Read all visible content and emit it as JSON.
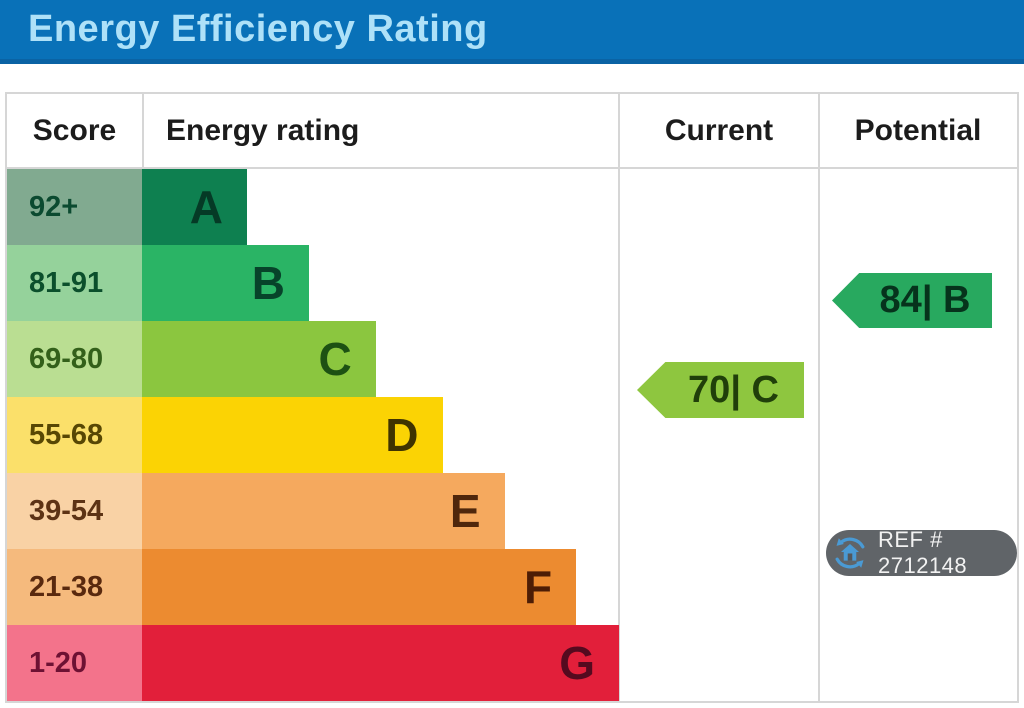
{
  "title_bar": {
    "title": "Energy Efficiency Rating"
  },
  "columns": {
    "score": "Score",
    "rating": "Energy rating",
    "current": "Current",
    "potential": "Potential"
  },
  "chart_data": {
    "type": "bar",
    "title": "Energy Efficiency Rating",
    "orientation": "horizontal",
    "bands": [
      {
        "grade": "A",
        "range": "92+",
        "width_pct": 22,
        "bar_color": "#0e8050",
        "score_bg": "#81aa90",
        "text_color": "#0b4a30",
        "letter_color": "#053a26"
      },
      {
        "grade": "B",
        "range": "81-91",
        "width_pct": 35,
        "bar_color": "#2ab465",
        "score_bg": "#95d29b",
        "text_color": "#0b4f2c",
        "letter_color": "#07432a"
      },
      {
        "grade": "C",
        "range": "69-80",
        "width_pct": 49,
        "bar_color": "#8bc63f",
        "score_bg": "#bade92",
        "text_color": "#33601a",
        "letter_color": "#1d5113"
      },
      {
        "grade": "D",
        "range": "55-68",
        "width_pct": 63,
        "bar_color": "#fbd304",
        "score_bg": "#fbe06a",
        "text_color": "#574704",
        "letter_color": "#3f3300"
      },
      {
        "grade": "E",
        "range": "39-54",
        "width_pct": 76,
        "bar_color": "#f5a95e",
        "score_bg": "#f9d2a5",
        "text_color": "#5d3315",
        "letter_color": "#4f270c"
      },
      {
        "grade": "F",
        "range": "21-38",
        "width_pct": 91,
        "bar_color": "#ec8b30",
        "score_bg": "#f5ba7d",
        "text_color": "#59290e",
        "letter_color": "#4d1d05"
      },
      {
        "grade": "G",
        "range": "1-20",
        "width_pct": 100,
        "bar_color": "#e21f3a",
        "score_bg": "#f3738b",
        "text_color": "#6d1133",
        "letter_color": "#550a1f"
      }
    ],
    "current": {
      "value": 70,
      "grade": "C",
      "label": "70| C",
      "color": "#8ec63f",
      "text_color": "#203f0a"
    },
    "potential": {
      "value": 84,
      "grade": "B",
      "label": "84| B",
      "color": "#28a95f",
      "text_color": "#06331c"
    }
  },
  "ref_badge": {
    "label": "REF # 2712148",
    "icon": "house-sync-icon"
  },
  "theme": {
    "header_bg": "#0971b8",
    "header_border": "#0a63a4",
    "header_text": "#aee1f8",
    "grid_border": "#d6d6d6",
    "icon_blue": "#4a9ad4"
  }
}
